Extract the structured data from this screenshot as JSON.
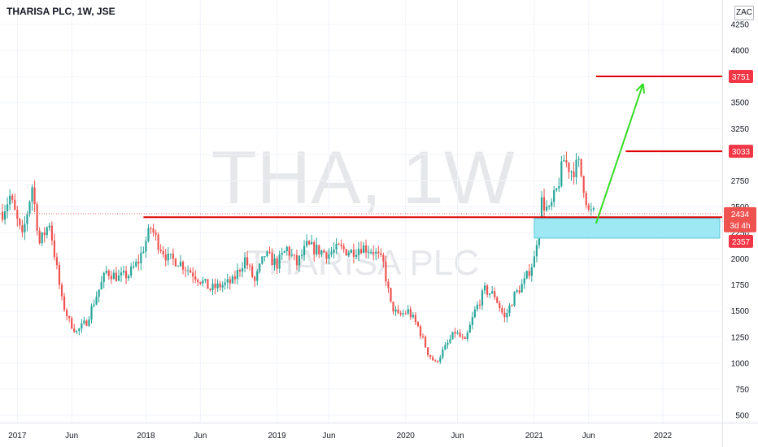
{
  "header": {
    "symbol_info": "THARISA PLC, 1W, JSE",
    "currency": "ZAC"
  },
  "watermark": {
    "ticker": "THA, 1W",
    "name": "THARISA PLC"
  },
  "colors": {
    "up": "#26a69a",
    "down": "#ef5350",
    "level": "#e00000",
    "target_arrow": "#33dd22",
    "zone": "#9ee8f4"
  },
  "chart_data": {
    "type": "candlestick",
    "interval": "1W",
    "y_axis": {
      "ticks": [
        4250,
        4000,
        3750,
        3500,
        3250,
        3000,
        2750,
        2500,
        2250,
        2000,
        1750,
        1500,
        1250,
        1000,
        750,
        500
      ],
      "range": [
        440,
        4340
      ]
    },
    "x_axis": {
      "range": [
        "2016-11-14",
        "2022-06-20"
      ],
      "ticks": [
        {
          "label": "2017",
          "date": "2017-01-02"
        },
        {
          "label": "Jun",
          "date": "2017-06-05"
        },
        {
          "label": "2018",
          "date": "2018-01-01"
        },
        {
          "label": "Jun",
          "date": "2018-06-04"
        },
        {
          "label": "2019",
          "date": "2019-01-07"
        },
        {
          "label": "Jun",
          "date": "2019-06-03"
        },
        {
          "label": "2020",
          "date": "2020-01-06"
        },
        {
          "label": "Jun",
          "date": "2020-06-01"
        },
        {
          "label": "2021",
          "date": "2021-01-04"
        },
        {
          "label": "Jun",
          "date": "2021-06-07"
        },
        {
          "label": "2022",
          "date": "2022-01-03"
        }
      ]
    },
    "price_anchors": [
      {
        "date": "2016-11-21",
        "price": 2450
      },
      {
        "date": "2016-12-12",
        "price": 2600
      },
      {
        "date": "2017-01-16",
        "price": 2200
      },
      {
        "date": "2017-02-13",
        "price": 2700
      },
      {
        "date": "2017-03-06",
        "price": 2150
      },
      {
        "date": "2017-04-03",
        "price": 2350
      },
      {
        "date": "2017-05-08",
        "price": 1600
      },
      {
        "date": "2017-05-29",
        "price": 1400
      },
      {
        "date": "2017-06-19",
        "price": 1300
      },
      {
        "date": "2017-07-17",
        "price": 1400
      },
      {
        "date": "2017-08-14",
        "price": 1650
      },
      {
        "date": "2017-09-11",
        "price": 1880
      },
      {
        "date": "2017-10-16",
        "price": 1820
      },
      {
        "date": "2017-11-13",
        "price": 1850
      },
      {
        "date": "2017-12-11",
        "price": 1980
      },
      {
        "date": "2018-01-15",
        "price": 2300
      },
      {
        "date": "2018-02-05",
        "price": 2150
      },
      {
        "date": "2018-03-05",
        "price": 2000
      },
      {
        "date": "2018-04-02",
        "price": 1980
      },
      {
        "date": "2018-05-07",
        "price": 1880
      },
      {
        "date": "2018-06-04",
        "price": 1800
      },
      {
        "date": "2018-07-02",
        "price": 1710
      },
      {
        "date": "2018-08-06",
        "price": 1750
      },
      {
        "date": "2018-09-03",
        "price": 1780
      },
      {
        "date": "2018-10-08",
        "price": 2000
      },
      {
        "date": "2018-11-05",
        "price": 1780
      },
      {
        "date": "2018-12-03",
        "price": 2040
      },
      {
        "date": "2019-01-07",
        "price": 1950
      },
      {
        "date": "2019-02-04",
        "price": 2100
      },
      {
        "date": "2019-03-04",
        "price": 1950
      },
      {
        "date": "2019-04-01",
        "price": 2120
      },
      {
        "date": "2019-05-06",
        "price": 2080
      },
      {
        "date": "2019-06-03",
        "price": 2050
      },
      {
        "date": "2019-07-01",
        "price": 2100
      },
      {
        "date": "2019-08-05",
        "price": 2070
      },
      {
        "date": "2019-09-02",
        "price": 2120
      },
      {
        "date": "2019-10-07",
        "price": 2080
      },
      {
        "date": "2019-11-04",
        "price": 1950
      },
      {
        "date": "2019-11-25",
        "price": 1560
      },
      {
        "date": "2019-12-16",
        "price": 1450
      },
      {
        "date": "2020-01-13",
        "price": 1500
      },
      {
        "date": "2020-02-10",
        "price": 1350
      },
      {
        "date": "2020-03-09",
        "price": 1100
      },
      {
        "date": "2020-03-30",
        "price": 1000
      },
      {
        "date": "2020-04-27",
        "price": 1150
      },
      {
        "date": "2020-05-25",
        "price": 1300
      },
      {
        "date": "2020-06-22",
        "price": 1200
      },
      {
        "date": "2020-07-20",
        "price": 1500
      },
      {
        "date": "2020-08-17",
        "price": 1700
      },
      {
        "date": "2020-09-14",
        "price": 1650
      },
      {
        "date": "2020-10-12",
        "price": 1430
      },
      {
        "date": "2020-11-09",
        "price": 1650
      },
      {
        "date": "2020-12-07",
        "price": 1780
      },
      {
        "date": "2021-01-04",
        "price": 2000
      },
      {
        "date": "2021-01-25",
        "price": 2550
      },
      {
        "date": "2021-02-15",
        "price": 2450
      },
      {
        "date": "2021-03-08",
        "price": 2650
      },
      {
        "date": "2021-03-29",
        "price": 2950
      },
      {
        "date": "2021-04-19",
        "price": 2850
      },
      {
        "date": "2021-05-10",
        "price": 2900
      },
      {
        "date": "2021-05-24",
        "price": 2700
      },
      {
        "date": "2021-06-07",
        "price": 2450
      },
      {
        "date": "2021-06-21",
        "price": 2434
      }
    ],
    "levels": [
      {
        "name": "support",
        "price": 2400,
        "from": "2017-12-25",
        "to": "2022-06-20"
      },
      {
        "name": "target_1",
        "price": 3033,
        "from": "2021-09-20",
        "to": "2022-06-20"
      },
      {
        "name": "target_2",
        "price": 3751,
        "from": "2021-06-28",
        "to": "2022-06-20"
      }
    ],
    "zone": {
      "from": "2021-01-04",
      "to": "2022-06-13",
      "price_low": 2200,
      "price_high": 2390
    },
    "projection": {
      "from_date": "2021-06-28",
      "from_price": 2340,
      "to_date": "2021-11-08",
      "to_price": 3680
    },
    "last_price": {
      "date": "2021-06-21",
      "price": 2434
    },
    "price_tags": [
      {
        "value": "3751",
        "price": 3751,
        "color": "#f23645"
      },
      {
        "value": "3033",
        "price": 3033,
        "color": "#f23645"
      },
      {
        "value": "2434",
        "price": 2434,
        "color": "#ef5350"
      },
      {
        "value": "2357",
        "price": 2357,
        "color": "#f23645"
      }
    ],
    "countdown": "3d 4h"
  }
}
